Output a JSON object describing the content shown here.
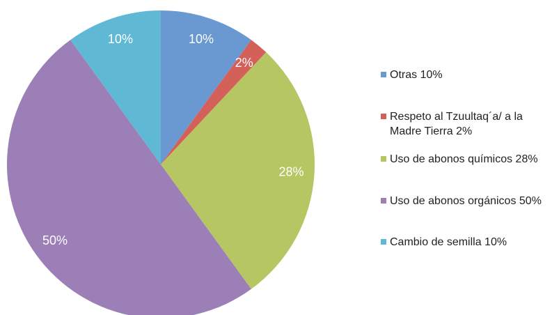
{
  "chart_data": {
    "type": "pie",
    "categories": [
      "Otras 10%",
      "Respeto al Tzuultaq´a/ a la Madre Tierra 2%",
      "Uso de abonos químicos 28%",
      "Uso de abonos orgánicos 50%",
      "Cambio de semilla 10%"
    ],
    "values": [
      10,
      2,
      28,
      50,
      10
    ],
    "value_labels": [
      "10%",
      "2%",
      "28%",
      "50%",
      "10%"
    ],
    "colors": [
      "#6a98d0",
      "#d4605a",
      "#b5c662",
      "#9b7fb6",
      "#5fb9d5"
    ],
    "legend": "right"
  }
}
